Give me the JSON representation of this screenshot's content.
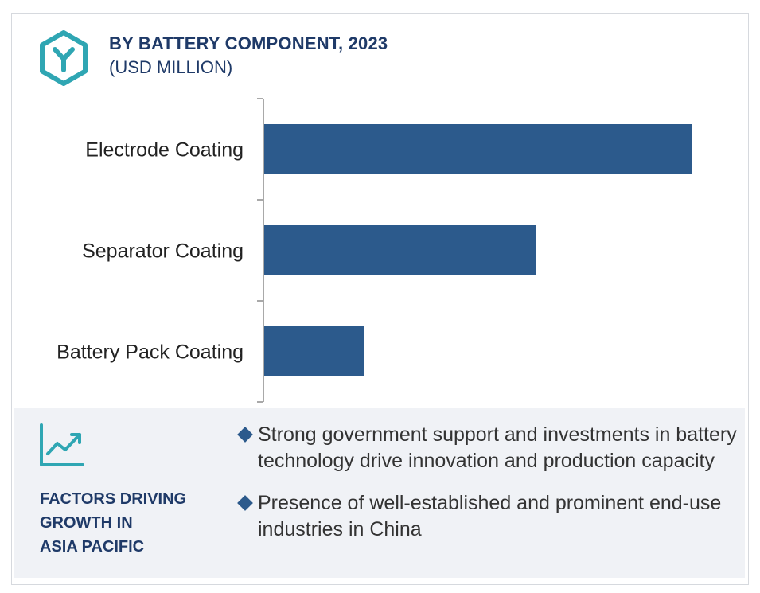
{
  "header": {
    "title": "BY BATTERY COMPONENT, 2023",
    "subtitle": "(USD MILLION)"
  },
  "colors": {
    "bar": "#2c5a8c",
    "accent": "#2fa6b3",
    "heading": "#1f3a68",
    "panel_bg": "#f0f2f6"
  },
  "chart_data": {
    "type": "bar",
    "orientation": "horizontal",
    "categories": [
      "Electrode Coating",
      "Separator Coating",
      "Battery Pack Coating"
    ],
    "values": [
      100,
      63.5,
      23.3
    ],
    "value_note": "relative values estimated from bar lengths; no axis values shown",
    "grid": false,
    "legend": "none"
  },
  "factors": {
    "heading_lines": [
      "FACTORS DRIVING",
      "GROWTH IN",
      "ASIA PACIFIC"
    ],
    "bullets": [
      "Strong government support and investments in battery technology drive innovation and production capacity",
      "Presence of well-established and prominent end-use industries in China"
    ]
  },
  "icons": {
    "logo": "hexagon-y-logo-icon",
    "trend": "trend-chart-icon",
    "bullet": "diamond-bullet-icon"
  }
}
